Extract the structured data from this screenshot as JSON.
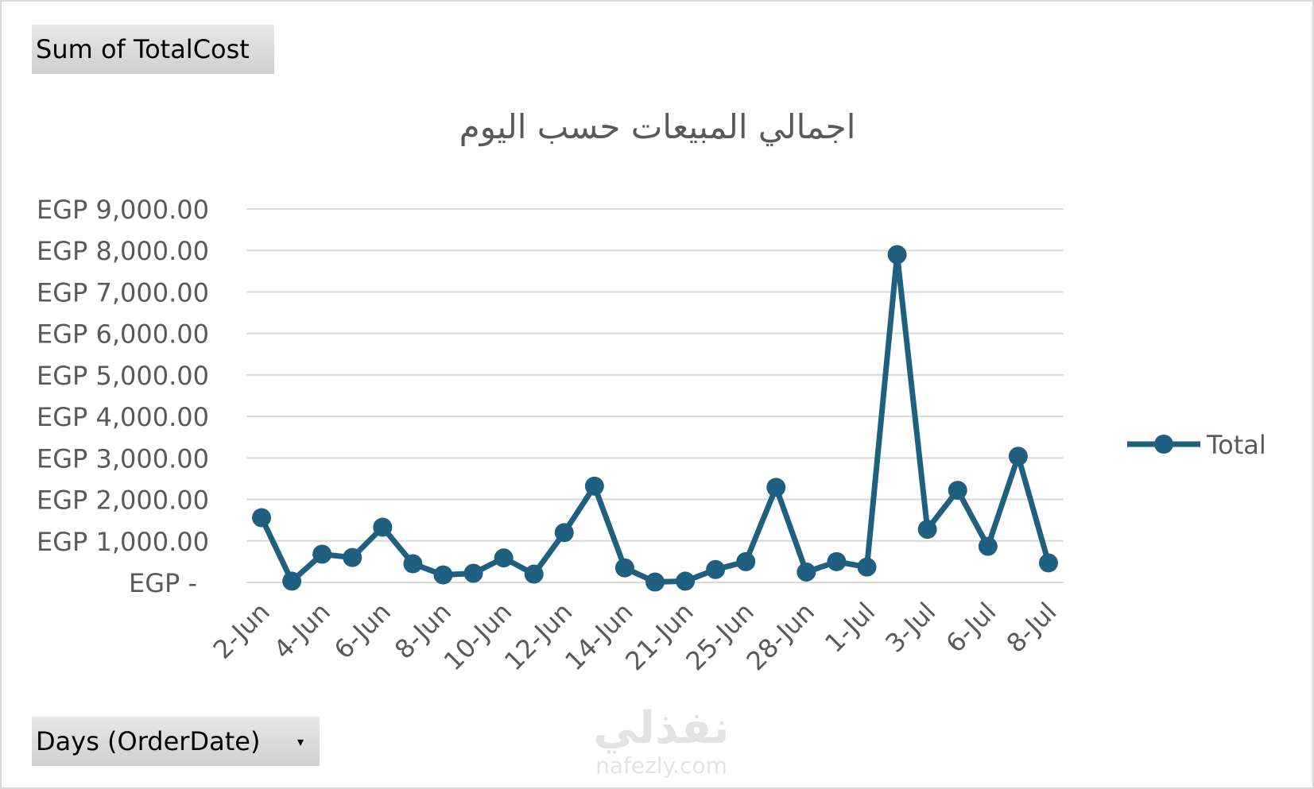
{
  "pivot": {
    "value_field": "Sum of TotalCost",
    "axis_field": "Days (OrderDate)"
  },
  "watermark": {
    "arabic": "نفذلي",
    "latin": "nafezly.com"
  },
  "chart_data": {
    "type": "line",
    "title": "اجمالي المبيعات حسب اليوم",
    "xlabel": "",
    "ylabel": "",
    "ylim": [
      0,
      9000
    ],
    "yticks": [
      {
        "value": 0,
        "label": "EGP -"
      },
      {
        "value": 1000,
        "label": "EGP 1,000.00"
      },
      {
        "value": 2000,
        "label": "EGP 2,000.00"
      },
      {
        "value": 3000,
        "label": "EGP 3,000.00"
      },
      {
        "value": 4000,
        "label": "EGP 4,000.00"
      },
      {
        "value": 5000,
        "label": "EGP 5,000.00"
      },
      {
        "value": 6000,
        "label": "EGP 6,000.00"
      },
      {
        "value": 7000,
        "label": "EGP 7,000.00"
      },
      {
        "value": 8000,
        "label": "EGP 8,000.00"
      },
      {
        "value": 9000,
        "label": "EGP 9,000.00"
      }
    ],
    "grid": true,
    "legend_position": "right",
    "x_tick_labels": [
      "2-Jun",
      "4-Jun",
      "6-Jun",
      "8-Jun",
      "10-Jun",
      "12-Jun",
      "14-Jun",
      "21-Jun",
      "25-Jun",
      "28-Jun",
      "1-Jul",
      "3-Jul",
      "6-Jul",
      "8-Jul"
    ],
    "x_label_every": 2,
    "series": [
      {
        "name": "Total",
        "color": "#1f5f80",
        "values": [
          1560,
          30,
          680,
          600,
          1330,
          450,
          180,
          220,
          590,
          200,
          1200,
          2320,
          350,
          10,
          30,
          310,
          500,
          2290,
          250,
          500,
          370,
          7900,
          1280,
          2220,
          870,
          3040,
          470
        ]
      }
    ]
  }
}
